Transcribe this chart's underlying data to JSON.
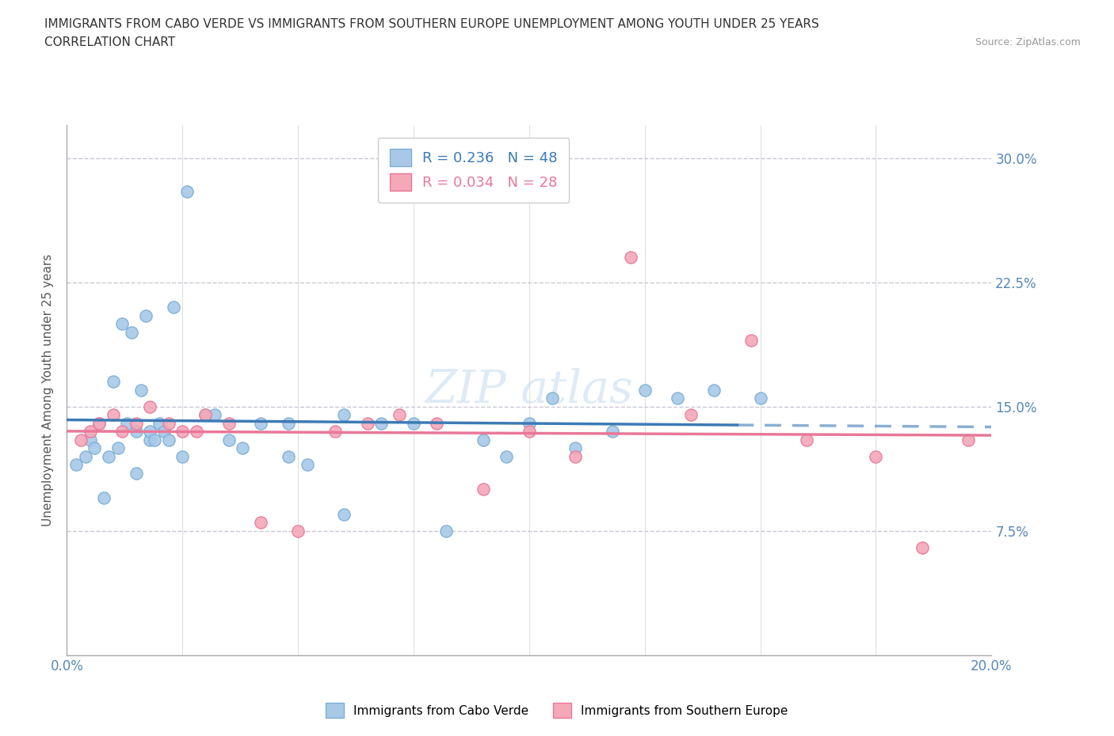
{
  "title_line1": "IMMIGRANTS FROM CABO VERDE VS IMMIGRANTS FROM SOUTHERN EUROPE UNEMPLOYMENT AMONG YOUTH UNDER 25 YEARS",
  "title_line2": "CORRELATION CHART",
  "source_text": "Source: ZipAtlas.com",
  "ylabel": "Unemployment Among Youth under 25 years",
  "xlim": [
    0.0,
    0.2
  ],
  "ylim": [
    0.0,
    0.32
  ],
  "yticks": [
    0.075,
    0.15,
    0.225,
    0.3
  ],
  "ytick_labels": [
    "7.5%",
    "15.0%",
    "22.5%",
    "30.0%"
  ],
  "xtick_labels": [
    "0.0%",
    "20.0%"
  ],
  "R_cabo": 0.236,
  "N_cabo": 48,
  "R_south": 0.034,
  "N_south": 28,
  "cabo_color": "#a8c8e8",
  "south_color": "#f4a8b8",
  "cabo_edge_color": "#7bafd4",
  "south_edge_color": "#e87898",
  "cabo_line_color": "#3d7ab5",
  "south_line_color": "#e87898",
  "watermark_color": "#c8dff0",
  "cabo_x": [
    0.002,
    0.004,
    0.005,
    0.006,
    0.007,
    0.008,
    0.009,
    0.01,
    0.011,
    0.012,
    0.013,
    0.014,
    0.015,
    0.015,
    0.016,
    0.017,
    0.018,
    0.018,
    0.019,
    0.02,
    0.021,
    0.022,
    0.023,
    0.025,
    0.026,
    0.03,
    0.032,
    0.035,
    0.038,
    0.042,
    0.048,
    0.052,
    0.06,
    0.068,
    0.075,
    0.082,
    0.09,
    0.095,
    0.1,
    0.105,
    0.11,
    0.118,
    0.125,
    0.132,
    0.14,
    0.15,
    0.06,
    0.048
  ],
  "cabo_y": [
    0.115,
    0.12,
    0.13,
    0.125,
    0.14,
    0.095,
    0.12,
    0.165,
    0.125,
    0.2,
    0.14,
    0.195,
    0.11,
    0.135,
    0.16,
    0.205,
    0.13,
    0.135,
    0.13,
    0.14,
    0.135,
    0.13,
    0.21,
    0.12,
    0.28,
    0.145,
    0.145,
    0.13,
    0.125,
    0.14,
    0.12,
    0.115,
    0.145,
    0.14,
    0.14,
    0.075,
    0.13,
    0.12,
    0.14,
    0.155,
    0.125,
    0.135,
    0.16,
    0.155,
    0.16,
    0.155,
    0.085,
    0.14
  ],
  "south_x": [
    0.003,
    0.005,
    0.007,
    0.01,
    0.012,
    0.015,
    0.018,
    0.022,
    0.025,
    0.028,
    0.03,
    0.035,
    0.042,
    0.05,
    0.058,
    0.065,
    0.072,
    0.08,
    0.09,
    0.1,
    0.11,
    0.122,
    0.135,
    0.148,
    0.16,
    0.175,
    0.185,
    0.195
  ],
  "south_y": [
    0.13,
    0.135,
    0.14,
    0.145,
    0.135,
    0.14,
    0.15,
    0.14,
    0.135,
    0.135,
    0.145,
    0.14,
    0.08,
    0.075,
    0.135,
    0.14,
    0.145,
    0.14,
    0.1,
    0.135,
    0.12,
    0.24,
    0.145,
    0.19,
    0.13,
    0.12,
    0.065,
    0.13
  ]
}
